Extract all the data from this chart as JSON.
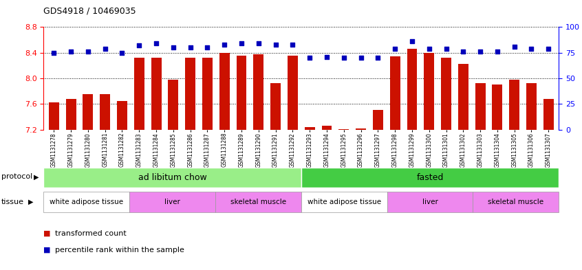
{
  "title": "GDS4918 / 10469035",
  "samples": [
    "GSM1131278",
    "GSM1131279",
    "GSM1131280",
    "GSM1131281",
    "GSM1131282",
    "GSM1131283",
    "GSM1131284",
    "GSM1131285",
    "GSM1131286",
    "GSM1131287",
    "GSM1131288",
    "GSM1131289",
    "GSM1131290",
    "GSM1131291",
    "GSM1131292",
    "GSM1131293",
    "GSM1131294",
    "GSM1131295",
    "GSM1131296",
    "GSM1131297",
    "GSM1131298",
    "GSM1131299",
    "GSM1131300",
    "GSM1131301",
    "GSM1131302",
    "GSM1131303",
    "GSM1131304",
    "GSM1131305",
    "GSM1131306",
    "GSM1131307"
  ],
  "bar_values": [
    7.62,
    7.68,
    7.75,
    7.75,
    7.65,
    8.32,
    8.32,
    7.98,
    8.32,
    8.32,
    8.4,
    8.35,
    8.38,
    7.92,
    8.35,
    7.24,
    7.26,
    7.21,
    7.22,
    7.51,
    8.34,
    8.46,
    8.4,
    8.32,
    8.22,
    7.92,
    7.9,
    7.98,
    7.92,
    7.68
  ],
  "percentile_values": [
    75,
    76,
    76,
    79,
    75,
    82,
    84,
    80,
    80,
    80,
    83,
    84,
    84,
    83,
    83,
    70,
    71,
    70,
    70,
    70,
    79,
    86,
    79,
    79,
    76,
    76,
    76,
    81,
    79,
    79
  ],
  "ylim_left": [
    7.2,
    8.8
  ],
  "ylim_right": [
    0,
    100
  ],
  "yticks_left": [
    7.2,
    7.6,
    8.0,
    8.4,
    8.8
  ],
  "yticks_right": [
    0,
    25,
    50,
    75,
    100
  ],
  "bar_color": "#cc1100",
  "dot_color": "#0000bb",
  "protocol_labels": [
    "ad libitum chow",
    "fasted"
  ],
  "protocol_colors": [
    "#99ee88",
    "#44cc44"
  ],
  "protocol_ranges_samples": [
    [
      0,
      15
    ],
    [
      15,
      30
    ]
  ],
  "tissue_labels": [
    "white adipose tissue",
    "liver",
    "skeletal muscle",
    "white adipose tissue",
    "liver",
    "skeletal muscle"
  ],
  "tissue_colors": [
    "#ffffff",
    "#ee88ee",
    "#ee88ee",
    "#ffffff",
    "#ee88ee",
    "#ee88ee"
  ],
  "tissue_ranges_samples": [
    [
      0,
      5
    ],
    [
      5,
      10
    ],
    [
      10,
      15
    ],
    [
      15,
      20
    ],
    [
      20,
      25
    ],
    [
      25,
      30
    ]
  ],
  "legend_entries": [
    "transformed count",
    "percentile rank within the sample"
  ],
  "legend_colors": [
    "#cc1100",
    "#0000bb"
  ]
}
